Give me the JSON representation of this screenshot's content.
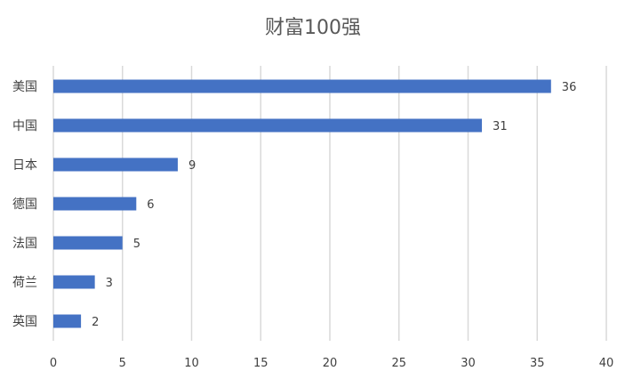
{
  "chart_data": {
    "type": "bar",
    "orientation": "horizontal",
    "title": "财富100强",
    "categories": [
      "美国",
      "中国",
      "日本",
      "德国",
      "法国",
      "荷兰",
      "英国"
    ],
    "values": [
      36,
      31,
      9,
      6,
      5,
      3,
      2
    ],
    "xlim": [
      0,
      40
    ],
    "xticks": [
      0,
      5,
      10,
      15,
      20,
      25,
      30,
      35,
      40
    ],
    "grid": "vertical",
    "legend": "none",
    "bar_color": "#4472C4",
    "grid_color": "#D9D9D9"
  }
}
